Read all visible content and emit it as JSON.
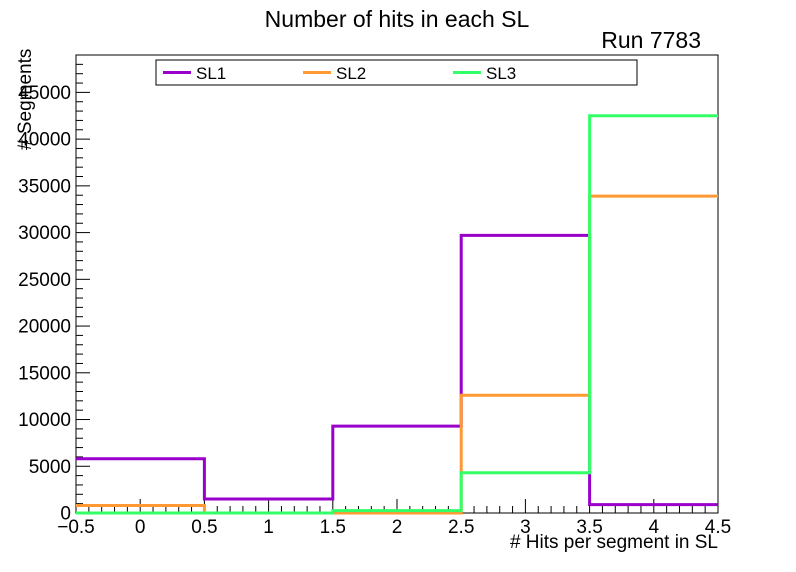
{
  "chart_data": {
    "type": "line",
    "style": "unfilled-step-histogram",
    "title": "Number of hits in each SL",
    "annotation": "Run 7783",
    "xlabel": "# Hits per segment in SL",
    "ylabel": "# Segments",
    "grid": false,
    "legend_position": "top-inside",
    "xlim": [
      -0.5,
      4.5
    ],
    "ylim": [
      0,
      49000
    ],
    "bin_edges": [
      -0.5,
      0.5,
      1.5,
      2.5,
      3.5,
      4.5
    ],
    "bin_centers": [
      0,
      1,
      2,
      3,
      4
    ],
    "series": [
      {
        "name": "SL1",
        "color": "#9900cc",
        "values": [
          5800,
          1500,
          9300,
          29700,
          900
        ]
      },
      {
        "name": "SL2",
        "color": "#ff9933",
        "values": [
          800,
          0,
          0,
          12600,
          33900
        ]
      },
      {
        "name": "SL3",
        "color": "#33ff66",
        "values": [
          0,
          0,
          250,
          4300,
          42500
        ]
      }
    ],
    "axes": {
      "x_major_ticks": [
        -0.5,
        0,
        0.5,
        1,
        1.5,
        2,
        2.5,
        3,
        3.5,
        4,
        4.5
      ],
      "x_tick_labels": [
        "−0.5",
        "0",
        "0.5",
        "1",
        "1.5",
        "2",
        "2.5",
        "3",
        "3.5",
        "4",
        "4.5"
      ],
      "x_minor_step": 0.1,
      "y_major_ticks": [
        0,
        5000,
        10000,
        15000,
        20000,
        25000,
        30000,
        35000,
        40000,
        45000
      ],
      "y_tick_labels": [
        "0",
        "5000",
        "10000",
        "15000",
        "20000",
        "25000",
        "30000",
        "35000",
        "40000",
        "45000"
      ],
      "y_minor_step": 1000
    }
  }
}
